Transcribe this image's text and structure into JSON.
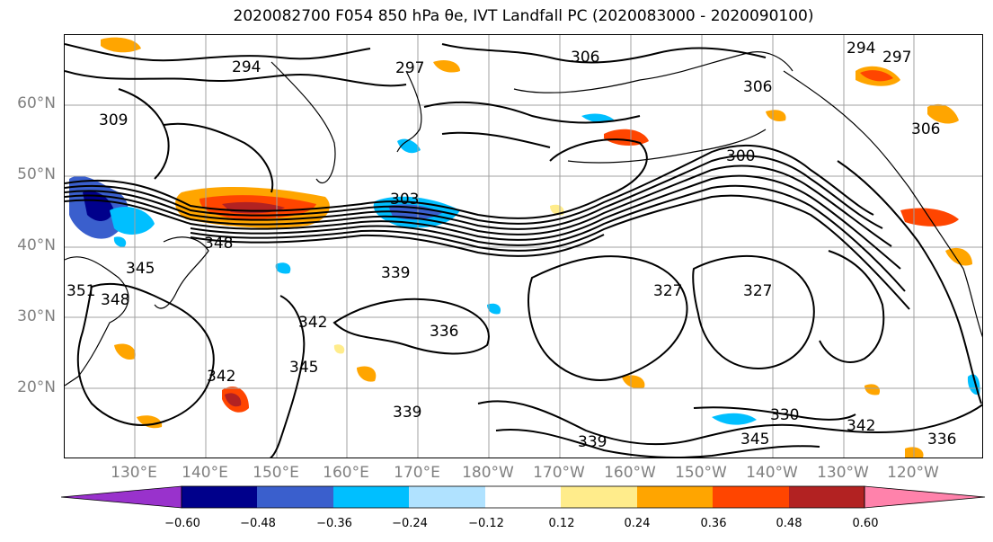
{
  "title": "2020082700 F054 850 hPa θe, IVT Landfall PC (2020083000 - 2020090100)",
  "map": {
    "lat_labels": [
      "60°N",
      "50°N",
      "40°N",
      "30°N",
      "20°N"
    ],
    "lon_labels": [
      "130°E",
      "140°E",
      "150°E",
      "160°E",
      "170°E",
      "180°W",
      "170°W",
      "160°W",
      "150°W",
      "140°W",
      "130°W",
      "120°W"
    ],
    "contour_labels": [
      "294",
      "297",
      "306",
      "294",
      "297",
      "309",
      "306",
      "300",
      "303",
      "348",
      "345",
      "348",
      "351",
      "339",
      "342",
      "336",
      "345",
      "342",
      "339",
      "345",
      "339",
      "330",
      "342",
      "327",
      "327",
      "336",
      "306"
    ],
    "grid": true,
    "contour_color": "#000000"
  },
  "colorbar": {
    "ticks": [
      "−0.60",
      "−0.48",
      "−0.36",
      "−0.24",
      "−0.12",
      "0.12",
      "0.24",
      "0.36",
      "0.48",
      "0.60"
    ],
    "colors": [
      "#9932cc",
      "#00008b",
      "#3a5fcd",
      "#00bfff",
      "#b0e2ff",
      "#ffffff",
      "#ffec8b",
      "#ffa500",
      "#ff4500",
      "#b22222",
      "#ff82ab",
      "#ff69b4"
    ],
    "extend": "both"
  }
}
